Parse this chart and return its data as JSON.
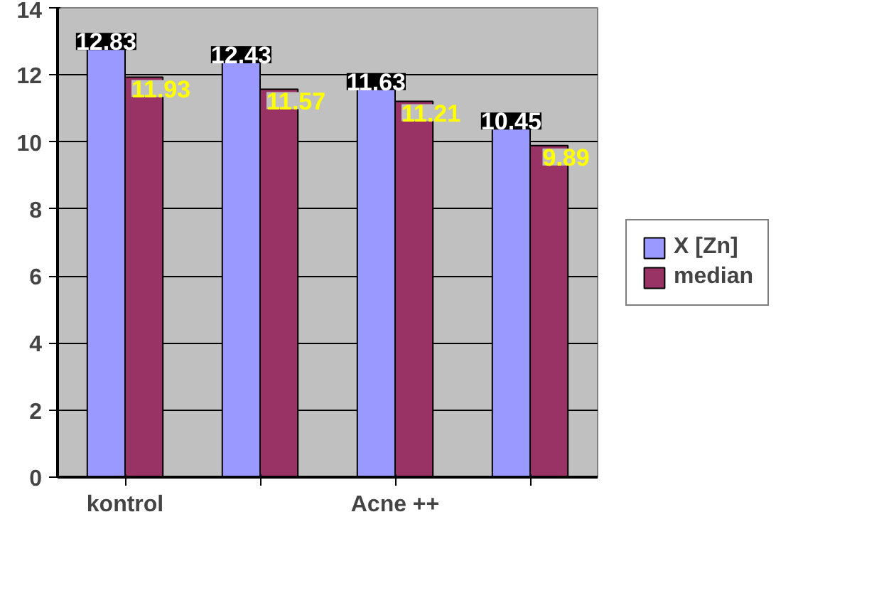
{
  "chart_data": {
    "type": "bar",
    "categories": [
      "kontrol",
      null,
      "Acne ++",
      null
    ],
    "series": [
      {
        "name": "X [Zn]",
        "color": "#9999ff",
        "values": [
          12.83,
          12.43,
          11.63,
          10.45
        ]
      },
      {
        "name": "median",
        "color": "#993366",
        "values": [
          11.93,
          11.57,
          11.21,
          9.89
        ]
      }
    ],
    "ylim": [
      0,
      14
    ],
    "yticks": [
      0,
      2,
      4,
      6,
      8,
      10,
      12,
      14
    ],
    "grid": "y",
    "legend": "right",
    "data_labels": true
  }
}
